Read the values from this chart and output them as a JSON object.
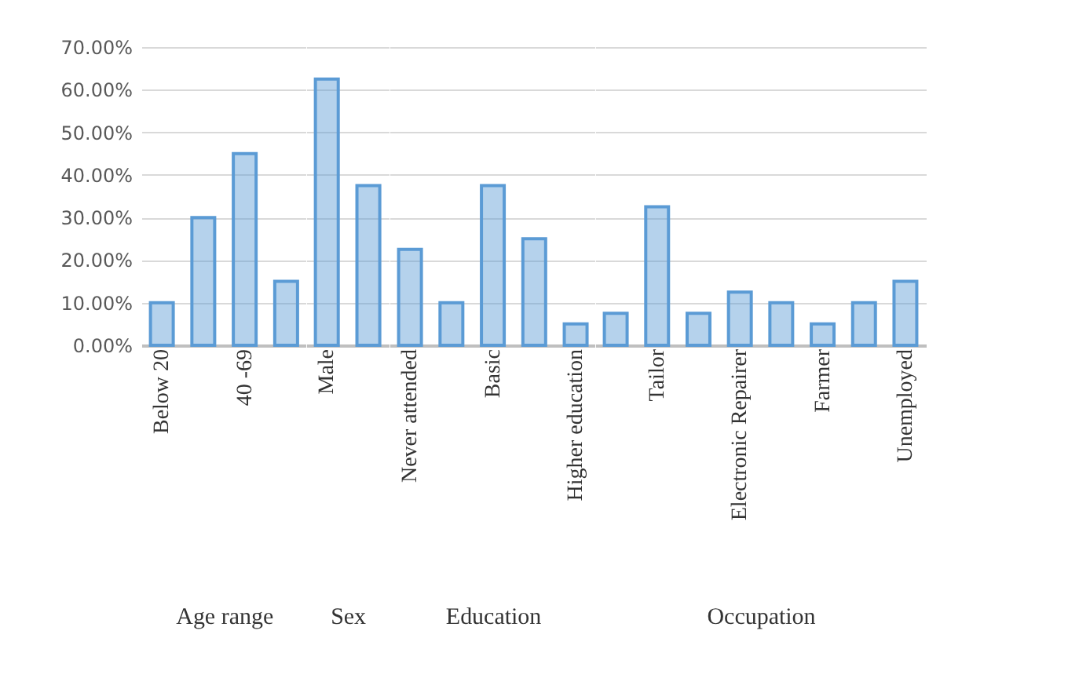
{
  "chart_data": [
    {
      "type": "bar",
      "xlabel": "Age range",
      "categories": [
        "Below 20",
        null,
        "40 -69",
        null
      ],
      "values": [
        10,
        30,
        45,
        15
      ],
      "color": "#5b9bd5",
      "ylim": [
        0,
        70
      ],
      "yticks": [
        {
          "value": 0,
          "label": "0.00%"
        },
        {
          "value": 10,
          "label": "10.00%"
        },
        {
          "value": 20,
          "label": "20.00%"
        },
        {
          "value": 30,
          "label": "30.00%"
        },
        {
          "value": 40,
          "label": "40.00%"
        },
        {
          "value": 50,
          "label": "50.00%"
        },
        {
          "value": 60,
          "label": "60.00%"
        },
        {
          "value": 70,
          "label": "70.00%"
        }
      ],
      "grid": "y"
    },
    {
      "type": "bar",
      "xlabel": "Sex",
      "categories": [
        "Male",
        null
      ],
      "values": [
        62.5,
        37.5
      ],
      "color": "#5b9bd5",
      "ylim": [
        0,
        70
      ],
      "yticks": [
        0,
        10,
        20,
        30,
        40,
        50,
        60,
        70
      ],
      "grid": "y",
      "tick_labels": "x"
    },
    {
      "type": "bar",
      "xlabel": "Education",
      "categories": [
        "Never attended",
        null,
        "Basic",
        null,
        "Higher education"
      ],
      "values": [
        22.5,
        10,
        37.5,
        25,
        5
      ],
      "color": "#5b9bd5",
      "ylim": [
        0,
        70
      ],
      "yticks": [
        0,
        10,
        20,
        30,
        40,
        50,
        60,
        70
      ],
      "grid": "y",
      "tick_labels": "x"
    },
    {
      "type": "bar",
      "xlabel": "Occupation",
      "categories": [
        null,
        "Tailor",
        null,
        "Electronic Repairer",
        null,
        "Farmer",
        null,
        "Unemployed"
      ],
      "values": [
        7.5,
        32.5,
        7.5,
        12.5,
        10,
        5,
        10,
        15
      ],
      "color": "#5b9bd5",
      "ylim": [
        0,
        70
      ],
      "yticks": [
        0,
        10,
        20,
        30,
        40,
        50,
        60,
        70
      ],
      "grid": "y",
      "tick_labels": "x"
    }
  ]
}
